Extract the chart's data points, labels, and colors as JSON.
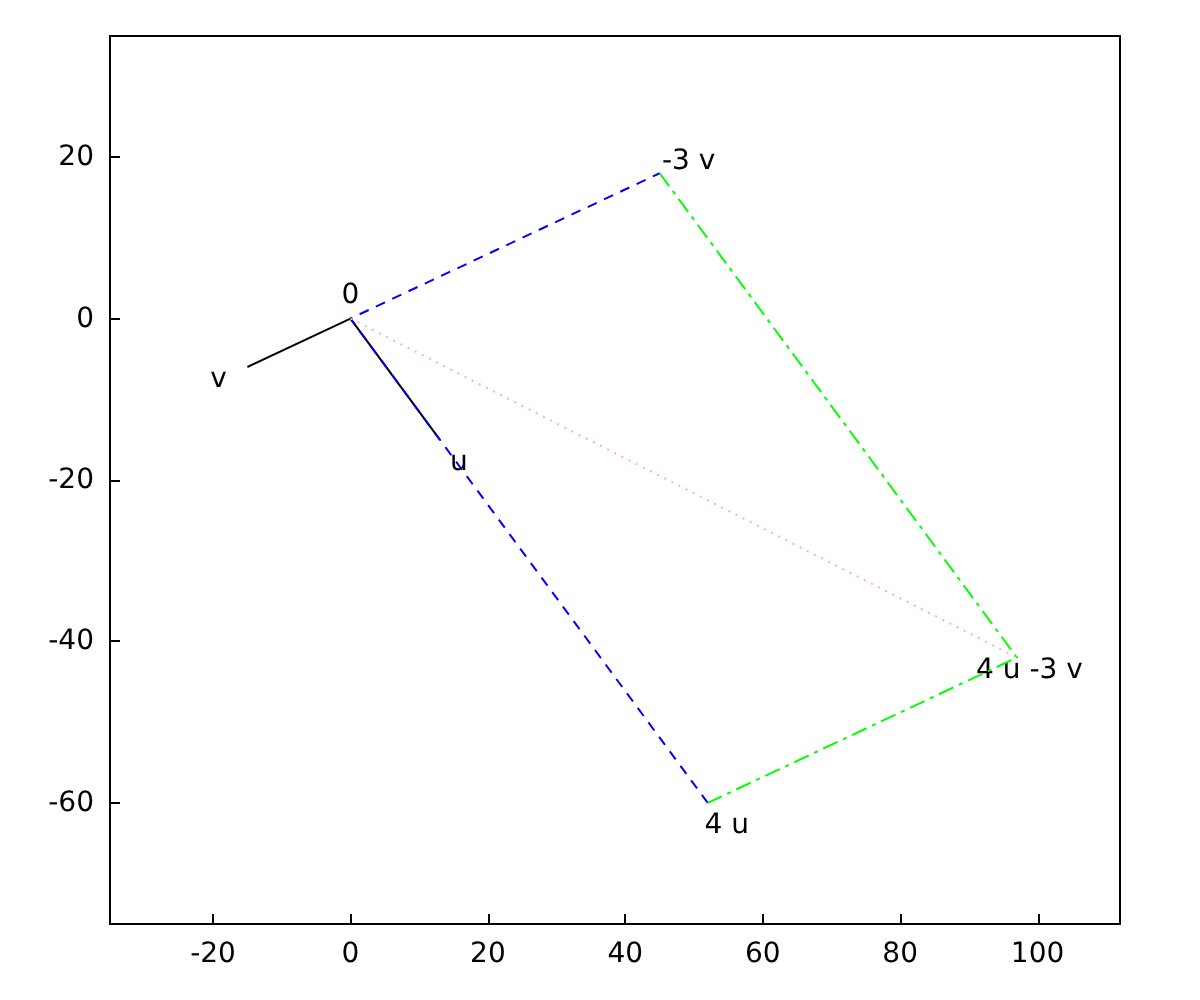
{
  "chart_data": {
    "type": "line",
    "xlim": [
      -35,
      112
    ],
    "ylim": [
      -75,
      35
    ],
    "xticks": [
      -20,
      0,
      20,
      40,
      60,
      80,
      100
    ],
    "yticks": [
      -60,
      -40,
      -20,
      0,
      20
    ],
    "grid": false,
    "marker": "none",
    "series": [
      {
        "color": "#000000",
        "line_style": "solid",
        "x": [
          -15,
          0,
          13
        ],
        "values": [
          -6,
          0,
          -15
        ]
      },
      {
        "color": "#0000ff",
        "line_style": "dashed",
        "x": [
          52,
          0,
          45
        ],
        "values": [
          -60,
          0,
          18
        ]
      },
      {
        "color": "#00ff00",
        "line_style": "dashdot",
        "x": [
          45,
          97,
          52
        ],
        "values": [
          18,
          -42,
          -60
        ]
      },
      {
        "color": "#ffb0b0",
        "line_style": "dotted",
        "x": [
          0,
          97
        ],
        "values": [
          0,
          -42
        ]
      }
    ],
    "annotations": [
      {
        "text": "0",
        "x": 0,
        "y": 0
      },
      {
        "text": "u",
        "x": 13,
        "y": -15
      },
      {
        "text": "v",
        "x": -15,
        "y": -6
      },
      {
        "text": "-3 v",
        "x": 45,
        "y": 18
      },
      {
        "text": "4 u",
        "x": 52,
        "y": -60
      },
      {
        "text": "4 u -3 v",
        "x": 97,
        "y": -42
      }
    ]
  }
}
